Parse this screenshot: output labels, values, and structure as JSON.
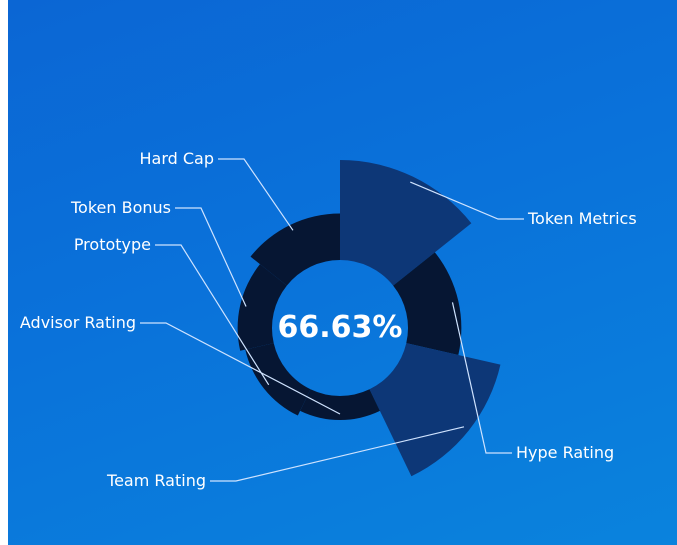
{
  "chart_data": {
    "type": "pie",
    "variant": "rose",
    "center_label": "66.63%",
    "slices": [
      {
        "label": "Token Metrics",
        "value": 5,
        "color": "#0d3777"
      },
      {
        "label": "Hype Rating",
        "value": 2.3,
        "color": "#061633"
      },
      {
        "label": "Team Rating",
        "value": 4.8,
        "color": "#0d3777"
      },
      {
        "label": "Advisor Rating",
        "value": 0.6,
        "color": "#061633"
      },
      {
        "label": "Prototype",
        "value": 0.9,
        "color": "#061633"
      },
      {
        "label": "Token Bonus",
        "value": 1.2,
        "color": "#061633"
      },
      {
        "label": "Hard Cap",
        "value": 1.9,
        "color": "#061633"
      }
    ]
  }
}
